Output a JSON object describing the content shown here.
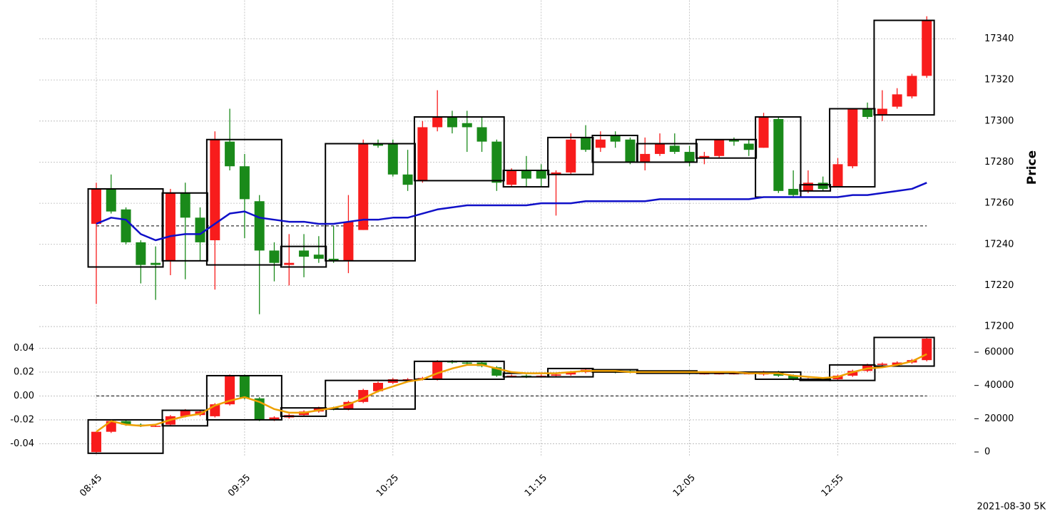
{
  "chart_data": [
    {
      "type": "candlestick",
      "ylabel": "Price",
      "y_axis_side": "right",
      "grid": true,
      "ylim": [
        17195,
        17357
      ],
      "yticks": [
        17200,
        17220,
        17240,
        17260,
        17280,
        17300,
        17320,
        17340
      ],
      "up_color": "#f81c1c",
      "down_color": "#1a8a1a",
      "open": [
        17250,
        17267,
        17257,
        17241,
        17231,
        17232,
        17265,
        17253,
        17242,
        17290,
        17278,
        17261,
        17237,
        17230,
        17237,
        17235,
        17233,
        17232,
        17247,
        17289,
        17289,
        17274,
        17271,
        17297,
        17302,
        17299,
        17297,
        17290,
        17269,
        17276,
        17276,
        17274,
        17275,
        17292,
        17287,
        17293,
        17291,
        17280,
        17284,
        17288,
        17285,
        17282,
        17283,
        17291,
        17289,
        17287,
        17301,
        17267,
        17266,
        17270,
        17268,
        17278,
        17306,
        17303,
        17307,
        17312,
        17322
      ],
      "high": [
        17270,
        17274,
        17258,
        17242,
        17239,
        17267,
        17270,
        17258,
        17295,
        17306,
        17284,
        17264,
        17241,
        17245,
        17245,
        17244,
        17249,
        17264,
        17291,
        17291,
        17291,
        17286,
        17300,
        17315,
        17305,
        17305,
        17302,
        17291,
        17277,
        17283,
        17279,
        17276,
        17294,
        17298,
        17295,
        17295,
        17292,
        17292,
        17294,
        17294,
        17288,
        17285,
        17291,
        17292,
        17291,
        17304,
        17302,
        17276,
        17276,
        17273,
        17282,
        17306,
        17309,
        17315,
        17316,
        17323,
        17351
      ],
      "low": [
        17211,
        17255,
        17240,
        17221,
        17213,
        17225,
        17223,
        17232,
        17218,
        17276,
        17243,
        17206,
        17222,
        17220,
        17224,
        17231,
        17231,
        17226,
        17247,
        17287,
        17273,
        17266,
        17270,
        17295,
        17294,
        17285,
        17285,
        17266,
        17268,
        17268,
        17268,
        17254,
        17274,
        17285,
        17285,
        17287,
        17279,
        17276,
        17283,
        17284,
        17278,
        17279,
        17282,
        17288,
        17283,
        17287,
        17265,
        17263,
        17265,
        17266,
        17268,
        17277,
        17301,
        17300,
        17306,
        17311,
        17321
      ],
      "close": [
        17267,
        17256,
        17241,
        17230,
        17230,
        17265,
        17253,
        17241,
        17291,
        17278,
        17262,
        17237,
        17231,
        17231,
        17234,
        17233,
        17232,
        17251,
        17289,
        17288,
        17274,
        17269,
        17297,
        17302,
        17297,
        17297,
        17290,
        17270,
        17276,
        17272,
        17272,
        17275,
        17291,
        17286,
        17291,
        17290,
        17280,
        17284,
        17289,
        17285,
        17280,
        17283,
        17291,
        17290,
        17286,
        17302,
        17266,
        17264,
        17270,
        17267,
        17279,
        17306,
        17302,
        17306,
        17313,
        17322,
        17349
      ],
      "boxes": [
        {
          "from": 0,
          "to": 4,
          "high": 17267,
          "low": 17229
        },
        {
          "from": 5,
          "to": 7,
          "high": 17265,
          "low": 17232
        },
        {
          "from": 8,
          "to": 12,
          "high": 17291,
          "low": 17230
        },
        {
          "from": 13,
          "to": 15,
          "high": 17239,
          "low": 17229
        },
        {
          "from": 16,
          "to": 21,
          "high": 17289,
          "low": 17232
        },
        {
          "from": 22,
          "to": 27,
          "high": 17302,
          "low": 17271
        },
        {
          "from": 28,
          "to": 30,
          "high": 17276,
          "low": 17268
        },
        {
          "from": 31,
          "to": 33,
          "high": 17292,
          "low": 17274
        },
        {
          "from": 34,
          "to": 36,
          "high": 17293,
          "low": 17280
        },
        {
          "from": 37,
          "to": 40,
          "high": 17289,
          "low": 17280
        },
        {
          "from": 41,
          "to": 44,
          "high": 17291,
          "low": 17282
        },
        {
          "from": 45,
          "to": 47,
          "high": 17302,
          "low": 17263
        },
        {
          "from": 48,
          "to": 49,
          "high": 17269,
          "low": 17266
        },
        {
          "from": 50,
          "to": 52,
          "high": 17306,
          "low": 17268
        },
        {
          "from": 53,
          "to": 56,
          "high": 17349,
          "low": 17303
        }
      ],
      "lines": [
        {
          "color": "#1010c8",
          "values": [
            17250,
            17253,
            17252,
            17245,
            17242,
            17244,
            17245,
            17245,
            17250,
            17255,
            17256,
            17253,
            17252,
            17251,
            17251,
            17250,
            17250,
            17251,
            17252,
            17252,
            17253,
            17253,
            17255,
            17257,
            17258,
            17259,
            17259,
            17259,
            17259,
            17259,
            17260,
            17260,
            17260,
            17261,
            17261,
            17261,
            17261,
            17261,
            17262,
            17262,
            17262,
            17262,
            17262,
            17262,
            17262,
            17263,
            17263,
            17263,
            17263,
            17263,
            17263,
            17264,
            17264,
            17265,
            17266,
            17267,
            17270
          ]
        }
      ],
      "reference_line": 17249
    },
    {
      "type": "candlestick",
      "grid": true,
      "categories": [
        "08:45",
        null,
        null,
        null,
        null,
        null,
        null,
        null,
        null,
        null,
        "09:35",
        null,
        null,
        null,
        null,
        null,
        null,
        null,
        null,
        null,
        "10:25",
        null,
        null,
        null,
        null,
        null,
        null,
        null,
        null,
        null,
        "11:15",
        null,
        null,
        null,
        null,
        null,
        null,
        null,
        null,
        null,
        "12:05",
        null,
        null,
        null,
        null,
        null,
        null,
        null,
        null,
        null,
        "12:55",
        null,
        null,
        null,
        null,
        null,
        null
      ],
      "ylim": [
        -0.0505,
        0.051
      ],
      "yticks": [
        -0.04,
        -0.02,
        {
          "value": 0,
          "label": "0.00"
        },
        0.02,
        0.04
      ],
      "y2lim": [
        -2570,
        70290
      ],
      "y2ticks": [
        0,
        20000,
        40000,
        60000
      ],
      "up_color": "#f81c1c",
      "down_color": "#1a8a1a",
      "open": [
        -0.047,
        -0.03,
        -0.021,
        -0.024,
        -0.025,
        -0.024,
        -0.017,
        -0.016,
        -0.017,
        -0.007,
        0.017,
        -0.002,
        -0.02,
        -0.018,
        -0.016,
        -0.013,
        -0.01,
        -0.011,
        -0.005,
        0.004,
        0.011,
        0.014,
        0.014,
        0.014,
        0.029,
        0.028,
        0.028,
        0.024,
        0.017,
        0.017,
        0.017,
        0.017,
        0.018,
        0.02,
        0.021,
        0.021,
        0.021,
        0.02,
        0.02,
        0.02,
        0.02,
        0.019,
        0.019,
        0.019,
        0.019,
        0.018,
        0.02,
        0.017,
        0.014,
        0.014,
        0.014,
        0.017,
        0.021,
        0.026,
        0.026,
        0.028,
        0.03
      ],
      "high": [
        -0.03,
        -0.02,
        -0.02,
        -0.023,
        -0.024,
        -0.016,
        -0.011,
        -0.012,
        -0.006,
        0.018,
        0.018,
        -0.001,
        -0.017,
        -0.015,
        -0.012,
        -0.009,
        -0.009,
        -0.004,
        0.006,
        0.012,
        0.015,
        0.015,
        0.016,
        0.03,
        0.03,
        0.029,
        0.029,
        0.025,
        0.018,
        0.018,
        0.018,
        0.019,
        0.021,
        0.023,
        0.022,
        0.022,
        0.022,
        0.021,
        0.021,
        0.021,
        0.021,
        0.02,
        0.02,
        0.02,
        0.02,
        0.021,
        0.021,
        0.018,
        0.015,
        0.015,
        0.018,
        0.022,
        0.027,
        0.028,
        0.029,
        0.031,
        0.049
      ],
      "low": [
        -0.048,
        -0.031,
        -0.025,
        -0.026,
        -0.026,
        -0.025,
        -0.018,
        -0.017,
        -0.018,
        -0.008,
        -0.003,
        -0.021,
        -0.021,
        -0.019,
        -0.017,
        -0.014,
        -0.012,
        -0.012,
        -0.006,
        0.003,
        0.01,
        0.013,
        0.013,
        0.013,
        0.027,
        0.026,
        0.024,
        0.016,
        0.016,
        0.015,
        0.016,
        0.016,
        0.017,
        0.019,
        0.02,
        0.019,
        0.019,
        0.019,
        0.019,
        0.019,
        0.018,
        0.018,
        0.018,
        0.018,
        0.018,
        0.017,
        0.016,
        0.013,
        0.013,
        0.013,
        0.013,
        0.016,
        0.02,
        0.025,
        0.025,
        0.027,
        0.029
      ],
      "close": [
        -0.03,
        -0.021,
        -0.024,
        -0.025,
        -0.025,
        -0.017,
        -0.012,
        -0.013,
        -0.007,
        0.017,
        -0.002,
        -0.02,
        -0.018,
        -0.016,
        -0.013,
        -0.01,
        -0.011,
        -0.005,
        0.005,
        0.011,
        0.014,
        0.014,
        0.015,
        0.029,
        0.028,
        0.027,
        0.025,
        0.017,
        0.017,
        0.016,
        0.017,
        0.018,
        0.02,
        0.022,
        0.021,
        0.02,
        0.02,
        0.02,
        0.02,
        0.02,
        0.019,
        0.019,
        0.019,
        0.019,
        0.019,
        0.02,
        0.017,
        0.014,
        0.014,
        0.014,
        0.017,
        0.021,
        0.026,
        0.027,
        0.028,
        0.03,
        0.048
      ],
      "boxes": [
        {
          "from": 0,
          "to": 4,
          "high": -0.02,
          "low": -0.048
        },
        {
          "from": 5,
          "to": 7,
          "high": -0.012,
          "low": -0.025
        },
        {
          "from": 8,
          "to": 12,
          "high": 0.017,
          "low": -0.02
        },
        {
          "from": 13,
          "to": 15,
          "high": -0.01,
          "low": -0.017
        },
        {
          "from": 16,
          "to": 21,
          "high": 0.013,
          "low": -0.011
        },
        {
          "from": 22,
          "to": 27,
          "high": 0.029,
          "low": 0.014
        },
        {
          "from": 28,
          "to": 30,
          "high": 0.019,
          "low": 0.016
        },
        {
          "from": 31,
          "to": 33,
          "high": 0.023,
          "low": 0.016
        },
        {
          "from": 34,
          "to": 36,
          "high": 0.022,
          "low": 0.02
        },
        {
          "from": 37,
          "to": 40,
          "high": 0.021,
          "low": 0.019
        },
        {
          "from": 41,
          "to": 44,
          "high": 0.02,
          "low": 0.019
        },
        {
          "from": 45,
          "to": 47,
          "high": 0.02,
          "low": 0.014
        },
        {
          "from": 48,
          "to": 49,
          "high": 0.014,
          "low": 0.013
        },
        {
          "from": 50,
          "to": 52,
          "high": 0.026,
          "low": 0.013
        },
        {
          "from": 53,
          "to": 56,
          "high": 0.049,
          "low": 0.025
        }
      ],
      "lines": [
        {
          "color": "#eea000",
          "values": [
            -0.03,
            -0.021,
            -0.024,
            -0.025,
            -0.024,
            -0.02,
            -0.017,
            -0.015,
            -0.008,
            -0.004,
            -0.001,
            -0.005,
            -0.011,
            -0.014,
            -0.014,
            -0.012,
            -0.01,
            -0.007,
            -0.002,
            0.004,
            0.008,
            0.012,
            0.014,
            0.019,
            0.023,
            0.026,
            0.026,
            0.023,
            0.02,
            0.019,
            0.019,
            0.019,
            0.02,
            0.021,
            0.021,
            0.021,
            0.02,
            0.02,
            0.02,
            0.02,
            0.02,
            0.02,
            0.02,
            0.02,
            0.019,
            0.019,
            0.019,
            0.017,
            0.016,
            0.015,
            0.016,
            0.02,
            0.023,
            0.024,
            0.026,
            0.029,
            0.035
          ]
        }
      ],
      "reference_line": 0
    }
  ],
  "footer": "2021-08-30 5K"
}
